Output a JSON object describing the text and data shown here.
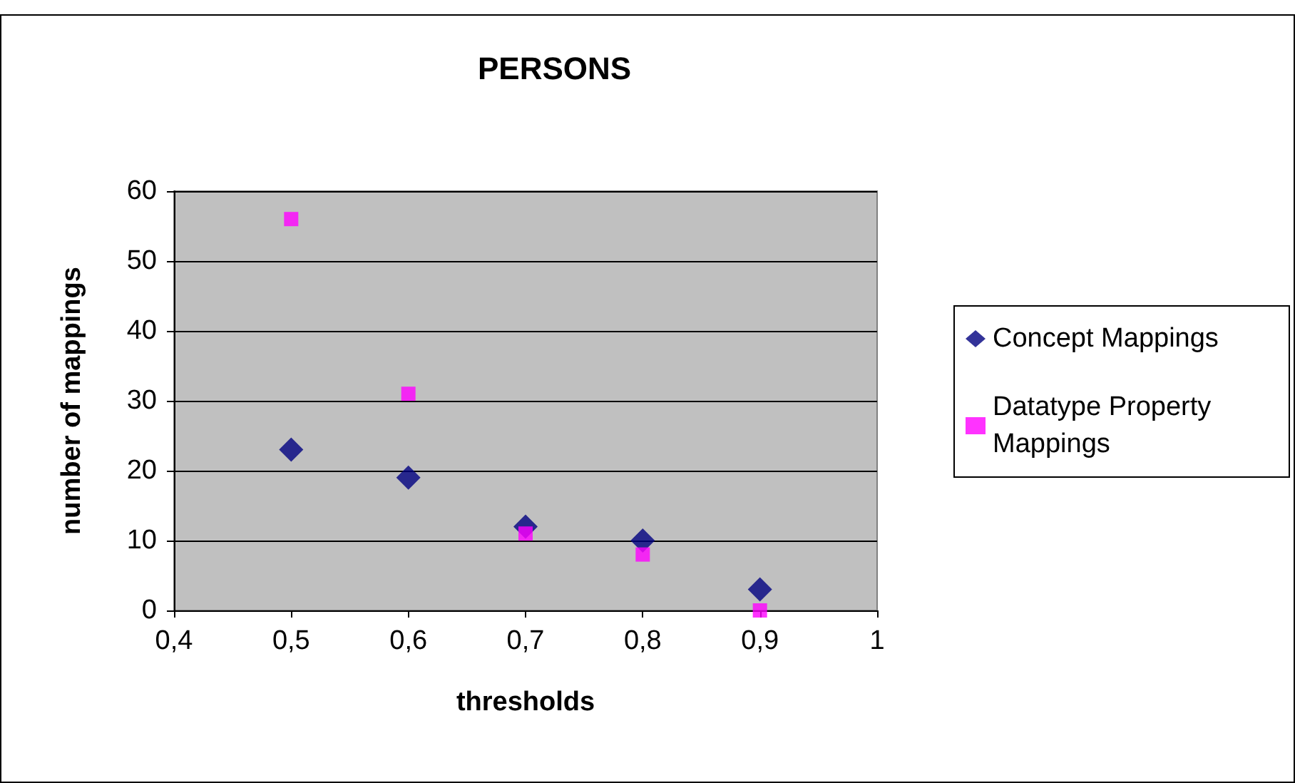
{
  "chart_data": {
    "type": "scatter",
    "title": "PERSONS",
    "xlabel": "thresholds",
    "ylabel": "number of mappings",
    "series": [
      {
        "name": "Concept Mappings",
        "color": "#000080",
        "marker": "diamond",
        "x": [
          0.5,
          0.6,
          0.7,
          0.8,
          0.9
        ],
        "values": [
          23,
          19,
          12,
          10,
          3
        ]
      },
      {
        "name": "Datatype Property Mappings",
        "color": "#ff00ff",
        "marker": "square",
        "x": [
          0.5,
          0.6,
          0.7,
          0.8,
          0.9
        ],
        "values": [
          56,
          31,
          11,
          8,
          0
        ]
      }
    ],
    "xlim": [
      0.4,
      1
    ],
    "xticks": [
      {
        "value": 0.4,
        "label": "0,4"
      },
      {
        "value": 0.5,
        "label": "0,5"
      },
      {
        "value": 0.6,
        "label": "0,6"
      },
      {
        "value": 0.7,
        "label": "0,7"
      },
      {
        "value": 0.8,
        "label": "0,8"
      },
      {
        "value": 0.9,
        "label": "0,9"
      },
      {
        "value": 1,
        "label": "1"
      }
    ],
    "ylim": [
      0,
      60
    ],
    "yticks": [
      0,
      10,
      20,
      30,
      40,
      50,
      60
    ],
    "grid": "y",
    "legend": "right"
  }
}
